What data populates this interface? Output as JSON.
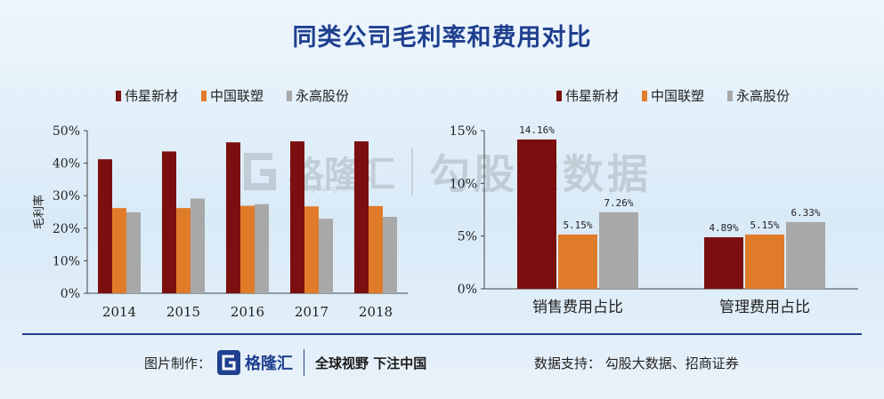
{
  "title": "同类公司毛利率和费用对比",
  "colors": {
    "weixing": "#7b0f0f",
    "zhongguo": "#e07b2a",
    "yonggao": "#a8a8a8",
    "brand": "#1f3f8f"
  },
  "watermark": {
    "logo_text": "格隆汇",
    "url": "www.gelonghui.com",
    "text": "勾股大数据"
  },
  "footer": {
    "made_by_label": "图片制作：",
    "logo_text": "格隆汇",
    "logo_url": "www.gelonghui.com",
    "slogan": "全球视野 下注中国",
    "data_support": "数据支持： 勾股大数据、招商证券"
  },
  "chart_data": [
    {
      "type": "bar",
      "ylabel": "毛利率",
      "categories": [
        "2014",
        "2015",
        "2016",
        "2017",
        "2018"
      ],
      "yticks": [
        "0%",
        "10%",
        "20%",
        "30%",
        "40%",
        "50%"
      ],
      "ylim": [
        0,
        50
      ],
      "legend_position": "top",
      "series": [
        {
          "name": "伟星新材",
          "values": [
            41.2,
            43.6,
            46.4,
            46.7,
            46.7
          ]
        },
        {
          "name": "中国联塑",
          "values": [
            26.2,
            26.2,
            26.9,
            26.7,
            26.8
          ]
        },
        {
          "name": "永高股份",
          "values": [
            24.9,
            29.1,
            27.4,
            22.9,
            23.5
          ]
        }
      ]
    },
    {
      "type": "bar",
      "categories": [
        "销售费用占比",
        "管理费用占比"
      ],
      "yticks": [
        "0%",
        "5%",
        "10%",
        "15%"
      ],
      "ylim": [
        0,
        15
      ],
      "legend_position": "top",
      "series": [
        {
          "name": "伟星新材",
          "values": [
            14.16,
            4.89
          ],
          "labels": [
            "14.16%",
            "4.89%"
          ]
        },
        {
          "name": "中国联塑",
          "values": [
            5.15,
            5.15
          ],
          "labels": [
            "5.15%",
            "5.15%"
          ]
        },
        {
          "name": "永高股份",
          "values": [
            7.26,
            6.33
          ],
          "labels": [
            "7.26%",
            "6.33%"
          ]
        }
      ]
    }
  ]
}
